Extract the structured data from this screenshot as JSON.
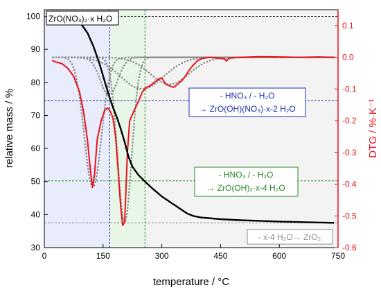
{
  "chart_data": {
    "type": "line",
    "xlabel": "temperature / °C",
    "ylabel_left": "relative mass / %",
    "ylabel_right": "DTG / %·K⁻¹",
    "xlim": [
      0,
      750
    ],
    "ylim_left": [
      30,
      102
    ],
    "ylim_right": [
      -0.6,
      0.15
    ],
    "xticks": [
      0,
      150,
      300,
      450,
      600,
      750
    ],
    "xtick_labels": [
      "0",
      "150",
      "300",
      "450",
      "600",
      "750"
    ],
    "yticks_left": [
      30,
      40,
      50,
      60,
      70,
      80,
      90,
      100
    ],
    "ytick_labels_left": [
      "30",
      "40",
      "50",
      "60",
      "70",
      "80",
      "90",
      "100"
    ],
    "yticks_right": [
      -0.6,
      -0.5,
      -0.4,
      -0.3,
      -0.2,
      -0.1,
      0.0,
      0.1
    ],
    "ytick_labels_right": [
      "-0.6",
      "-0.5",
      "-0.4",
      "-0.3",
      "-0.2",
      "-0.1",
      "0.0",
      "0.1"
    ],
    "grid": false,
    "colors": {
      "mass": "#000000",
      "dtg": "#e8101a",
      "fit": "#8a8a8a",
      "blue": "#1f2fb0",
      "green": "#2a8a2a",
      "gray": "#8c8c8c",
      "region1": "#e8ecfb",
      "region2": "#e8f6e8",
      "region3": "#f3f3f3"
    },
    "regions": [
      {
        "x0": 0,
        "x1": 167,
        "fill": "region1"
      },
      {
        "x0": 167,
        "x1": 257,
        "fill": "region2"
      },
      {
        "x0": 257,
        "x1": 750,
        "fill": "region3"
      }
    ],
    "ref_lines": [
      {
        "axis": "y_left",
        "value": 100,
        "color": "mass"
      },
      {
        "axis": "y_left",
        "value": 74.5,
        "color": "blue"
      },
      {
        "axis": "y_left",
        "value": 50.2,
        "color": "green"
      },
      {
        "axis": "y_left",
        "value": 37.5,
        "color": "gray"
      },
      {
        "axis": "x",
        "value": 167,
        "color": "blue"
      },
      {
        "axis": "x",
        "value": 257,
        "color": "green"
      }
    ],
    "series": [
      {
        "key": "mass",
        "axis": "left",
        "x": [
          20,
          50,
          80,
          95,
          110,
          125,
          140,
          155,
          165,
          175,
          185,
          195,
          205,
          215,
          225,
          240,
          257,
          275,
          300,
          325,
          350,
          365,
          380,
          400,
          450,
          500,
          600,
          700,
          740
        ],
        "y": [
          100,
          99.8,
          99,
          97.5,
          95,
          91,
          86,
          80,
          76,
          72.5,
          69.5,
          66,
          62,
          57.5,
          54.5,
          52,
          50,
          48,
          45.5,
          43.5,
          41.5,
          40.3,
          39.6,
          39.1,
          38.6,
          38.3,
          37.9,
          37.6,
          37.5
        ]
      },
      {
        "key": "dtg",
        "axis": "right",
        "x": [
          20,
          30,
          45,
          60,
          75,
          90,
          100,
          110,
          118,
          123,
          128,
          135,
          145,
          155,
          162,
          168,
          175,
          182,
          188,
          195,
          200,
          205,
          208,
          212,
          218,
          225,
          232,
          240,
          250,
          260,
          270,
          280,
          290,
          300,
          310,
          320,
          330,
          340,
          350,
          360,
          370,
          380,
          390,
          400,
          420,
          440,
          460,
          465,
          470,
          480,
          500,
          550,
          600,
          650,
          700,
          740
        ],
        "y": [
          -0.01,
          -0.015,
          -0.02,
          -0.035,
          -0.06,
          -0.11,
          -0.17,
          -0.26,
          -0.36,
          -0.41,
          -0.37,
          -0.26,
          -0.2,
          -0.165,
          -0.16,
          -0.17,
          -0.19,
          -0.25,
          -0.35,
          -0.47,
          -0.53,
          -0.52,
          -0.43,
          -0.3,
          -0.2,
          -0.18,
          -0.16,
          -0.14,
          -0.11,
          -0.095,
          -0.09,
          -0.08,
          -0.07,
          -0.065,
          -0.085,
          -0.09,
          -0.095,
          -0.085,
          -0.075,
          -0.06,
          -0.04,
          -0.025,
          -0.012,
          -0.005,
          0.0,
          -0.002,
          -0.005,
          -0.012,
          -0.004,
          -0.002,
          0.0,
          0.002,
          0.001,
          0.0,
          0.001,
          0.0
        ]
      },
      {
        "key": "fit",
        "axis": "right",
        "kind": "gauss",
        "center": 124,
        "amp": -0.41,
        "width": 22
      },
      {
        "key": "fit",
        "axis": "right",
        "kind": "gauss",
        "center": 165,
        "amp": -0.12,
        "width": 22
      },
      {
        "key": "fit",
        "axis": "right",
        "kind": "gauss",
        "center": 205,
        "amp": -0.52,
        "width": 18
      },
      {
        "key": "fit",
        "axis": "right",
        "kind": "gauss",
        "center": 250,
        "amp": -0.1,
        "width": 55
      },
      {
        "key": "fit",
        "axis": "right",
        "kind": "gauss",
        "center": 320,
        "amp": -0.085,
        "width": 50
      }
    ],
    "annotations": [
      {
        "key": "start",
        "lines": [
          "ZrO(NO₃)₂·x H₂O"
        ],
        "color": "mass"
      },
      {
        "key": "step1",
        "lines": [
          "- HNO₃ / - H₂O",
          "→ ZrO(OH)(NO₃)·x-2 H₂O"
        ],
        "color": "blue"
      },
      {
        "key": "step2",
        "lines": [
          "- HNO₃ / - H₂O",
          "→ ZrO(OH)₂·x-4 H₂O"
        ],
        "color": "green"
      },
      {
        "key": "step3",
        "lines": [
          "- x-4 H₂O→ ZrO₂"
        ],
        "color": "gray"
      }
    ]
  }
}
